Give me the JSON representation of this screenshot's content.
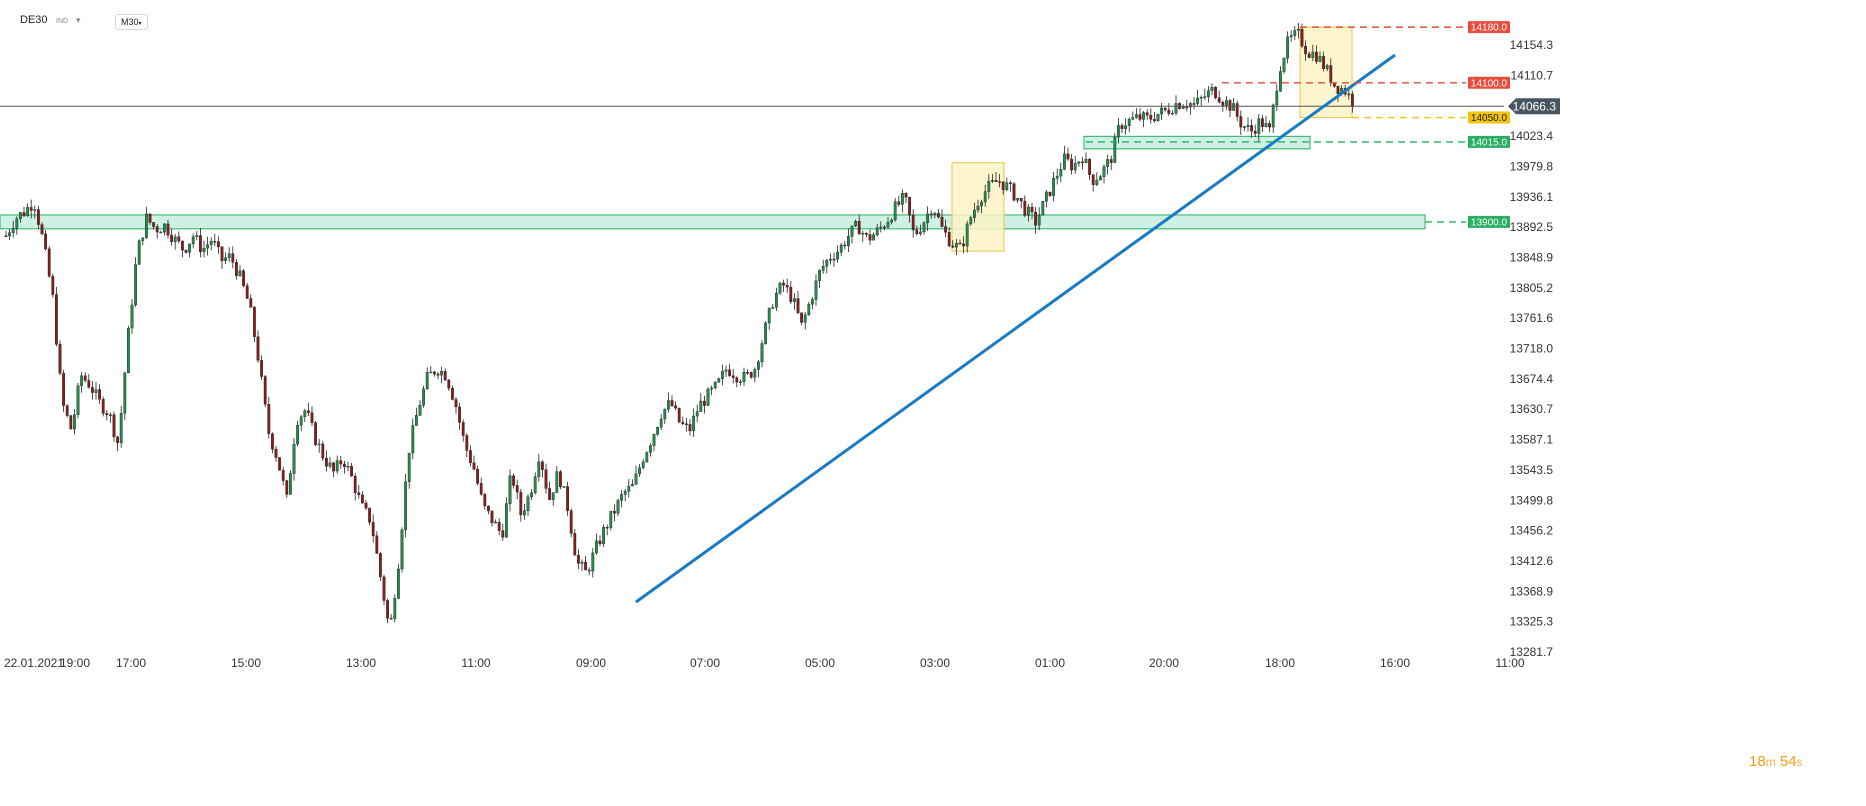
{
  "header": {
    "symbol": "DE30",
    "indicator_label": "IND",
    "dropdown_icon": "chevron-down-icon",
    "timeframe": "M30"
  },
  "timer": {
    "minutes": "18",
    "minutes_unit": "m",
    "seconds": "54",
    "seconds_unit": "s"
  },
  "colors": {
    "up_candle": "#1e8e4a",
    "down_candle": "#8b1a1a",
    "trendline": "#1a7bc4",
    "resistance": "#e74c3c",
    "support": "#27ae60",
    "pivot": "#f1c40f",
    "zone_fill": "#a8e6cf",
    "highlight_fill": "#fbf3c4",
    "current_price": "#4a5562"
  },
  "chart_data": {
    "type": "candlestick",
    "y_axis": {
      "range": [
        13281.7,
        14180.0
      ],
      "ticks": [
        "14154.3",
        "14110.7",
        "14066.3",
        "14023.4",
        "13979.8",
        "13936.1",
        "13892.5",
        "13848.9",
        "13805.2",
        "13761.6",
        "13718.0",
        "13674.4",
        "13630.7",
        "13587.1",
        "13543.5",
        "13499.8",
        "13456.2",
        "13412.6",
        "13368.9",
        "13325.3",
        "13281.7"
      ]
    },
    "x_axis": {
      "ticks": [
        "22.01.2021",
        "19:00",
        "17:00",
        "15:00",
        "13:00",
        "11:00",
        "09:00",
        "07:00",
        "05:00",
        "03:00",
        "01:00",
        "20:00",
        "18:00",
        "16:00",
        "11:00"
      ]
    },
    "current_price": "14066.3",
    "levels": [
      {
        "label": "14180.0",
        "value": 14180.0,
        "kind": "resistance"
      },
      {
        "label": "14100.0",
        "value": 14100.0,
        "kind": "resistance"
      },
      {
        "label": "14050.0",
        "value": 14050.0,
        "kind": "pivot"
      },
      {
        "label": "14015.0",
        "value": 14015.0,
        "kind": "support"
      },
      {
        "label": "13900.0",
        "value": 13900.0,
        "kind": "support"
      }
    ],
    "support_zones": [
      {
        "low": 13890,
        "high": 13910
      },
      {
        "low": 14005,
        "high": 14023
      }
    ],
    "price_path": [
      13880,
      13905,
      13915,
      13930,
      13870,
      13790,
      13640,
      13600,
      13680,
      13665,
      13640,
      13625,
      13580,
      13730,
      13855,
      13905,
      13890,
      13895,
      13875,
      13860,
      13880,
      13860,
      13875,
      13845,
      13850,
      13820,
      13780,
      13700,
      13600,
      13560,
      13500,
      13615,
      13630,
      13590,
      13560,
      13540,
      13560,
      13530,
      13490,
      13470,
      13390,
      13310,
      13420,
      13570,
      13630,
      13675,
      13690,
      13680,
      13640,
      13580,
      13545,
      13490,
      13470,
      13450,
      13540,
      13480,
      13510,
      13570,
      13500,
      13540,
      13490,
      13410,
      13395,
      13430,
      13460,
      13485,
      13510,
      13520,
      13560,
      13590,
      13625,
      13640,
      13610,
      13600,
      13635,
      13650,
      13665,
      13690,
      13680,
      13675,
      13690,
      13740,
      13790,
      13810,
      13790,
      13750,
      13790,
      13830,
      13850,
      13860,
      13880,
      13895,
      13875,
      13885,
      13900,
      13920,
      13935,
      13880,
      13900,
      13925,
      13890,
      13870,
      13860,
      13905,
      13935,
      13950,
      13960,
      13950,
      13935,
      13915,
      13900,
      13930,
      13960,
      13990,
      13980,
      13995,
      13960,
      13970,
      13990,
      14040,
      14045,
      14050,
      14048,
      14055,
      14060,
      14070,
      14072,
      14068,
      14080,
      14090,
      14075,
      14065,
      14040,
      14030,
      14045,
      14030,
      14120,
      14160,
      14170,
      14145,
      14140,
      14120,
      14095,
      14090,
      14070
    ]
  }
}
